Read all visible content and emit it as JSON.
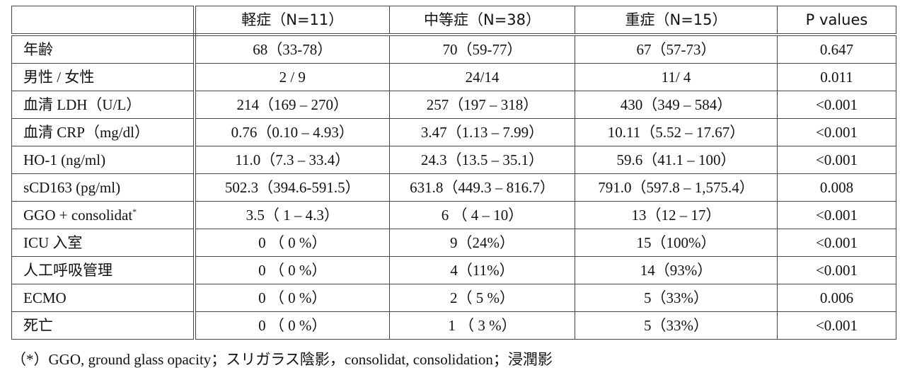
{
  "table": {
    "headers": [
      "",
      "軽症（N=11）",
      "中等症（N=38）",
      "重症（N=15）",
      "P values"
    ],
    "rows": [
      {
        "label": "年齢",
        "cells": [
          "68（33-78）",
          "70（59-77）",
          "67（57-73）",
          "0.647"
        ]
      },
      {
        "label": "男性 / 女性",
        "cells": [
          "2 / 9",
          "24/14",
          "11/ 4",
          "0.011"
        ]
      },
      {
        "label": "血清 LDH（U/L）",
        "cells": [
          "214（169 – 270）",
          "257（197 – 318）",
          "430（349 – 584）",
          "<0.001"
        ]
      },
      {
        "label": "血清 CRP（mg/dl）",
        "cells": [
          "0.76（0.10 – 4.93）",
          "3.47（1.13 – 7.99）",
          "10.11（5.52 – 17.67）",
          "<0.001"
        ]
      },
      {
        "label": "HO-1 (ng/ml)",
        "cells": [
          "11.0（7.3 – 33.4）",
          "24.3（13.5 – 35.1）",
          "59.6（41.1 – 100）",
          "<0.001"
        ]
      },
      {
        "label": "sCD163 (pg/ml)",
        "cells": [
          "502.3（394.6-591.5）",
          "631.8（449.3 – 816.7）",
          "791.0（597.8 – 1,575.4）",
          "0.008"
        ]
      },
      {
        "label": "GGO + consolidat",
        "label_sup": "*",
        "cells": [
          "3.5（ 1 – 4.3）",
          "6 （ 4 – 10）",
          "13（12 – 17）",
          "<0.001"
        ]
      },
      {
        "label": "ICU 入室",
        "cells": [
          "0 （ 0 %）",
          "9（24%）",
          "15（100%）",
          "<0.001"
        ]
      },
      {
        "label": "人工呼吸管理",
        "cells": [
          "0 （ 0 %）",
          "4（11%）",
          "14（93%）",
          "<0.001"
        ]
      },
      {
        "label": "ECMO",
        "cells": [
          "0 （ 0 %）",
          "2（ 5 %）",
          "5（33%）",
          "0.006"
        ]
      },
      {
        "label": "死亡",
        "cells": [
          "0 （ 0 %）",
          "1 （ 3 %）",
          "5（33%）",
          "<0.001"
        ]
      }
    ]
  },
  "footnote": "（*）GGO, ground glass opacity；スリガラス陰影，consolidat, consolidation；浸潤影"
}
